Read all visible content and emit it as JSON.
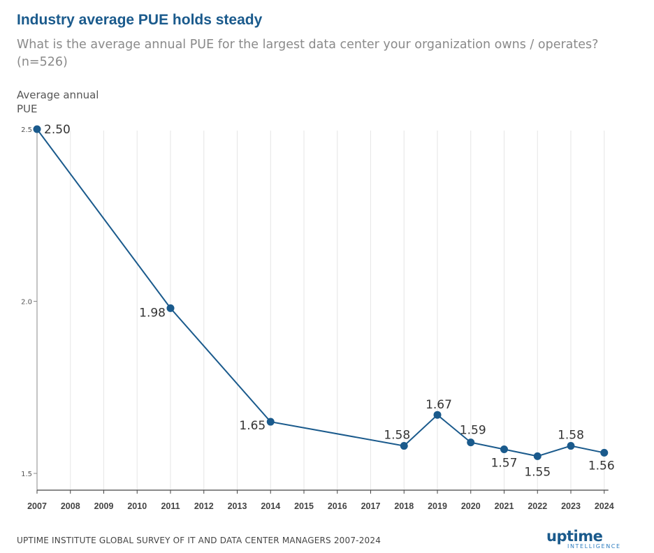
{
  "chart_data": {
    "type": "line",
    "title": "Industry average PUE holds steady",
    "subtitle": "What is the average annual PUE for the largest data center your organization owns / operates? (n=526)",
    "ylabel": "Average annual PUE",
    "xlabel": "",
    "x_ticks": [
      "2007",
      "2008",
      "2009",
      "2010",
      "2011",
      "2012",
      "2013",
      "2014",
      "2015",
      "2016",
      "2017",
      "2018",
      "2019",
      "2020",
      "2021",
      "2022",
      "2023",
      "2024"
    ],
    "y_ticks": [
      "1.5",
      "2.0",
      "2.5"
    ],
    "ylim": [
      1.5,
      2.5
    ],
    "grid": "vertical",
    "legend": "none",
    "series": [
      {
        "color": "#1a5a8c",
        "points": [
          {
            "x": "2007",
            "y": 2.5,
            "label": "2.50"
          },
          {
            "x": "2011",
            "y": 1.98,
            "label": "1.98"
          },
          {
            "x": "2014",
            "y": 1.65,
            "label": "1.65"
          },
          {
            "x": "2018",
            "y": 1.58,
            "label": "1.58"
          },
          {
            "x": "2019",
            "y": 1.67,
            "label": "1.67"
          },
          {
            "x": "2020",
            "y": 1.59,
            "label": "1.59"
          },
          {
            "x": "2021",
            "y": 1.57,
            "label": "1.57"
          },
          {
            "x": "2022",
            "y": 1.55,
            "label": "1.55"
          },
          {
            "x": "2023",
            "y": 1.58,
            "label": "1.58"
          },
          {
            "x": "2024",
            "y": 1.56,
            "label": "1.56"
          }
        ]
      }
    ]
  },
  "footer": {
    "source": "UPTIME INSTITUTE GLOBAL SURVEY OF IT AND DATA CENTER MANAGERS 2007-2024"
  },
  "logo": {
    "main": "uptime",
    "sub": "INTELLIGENCE"
  }
}
